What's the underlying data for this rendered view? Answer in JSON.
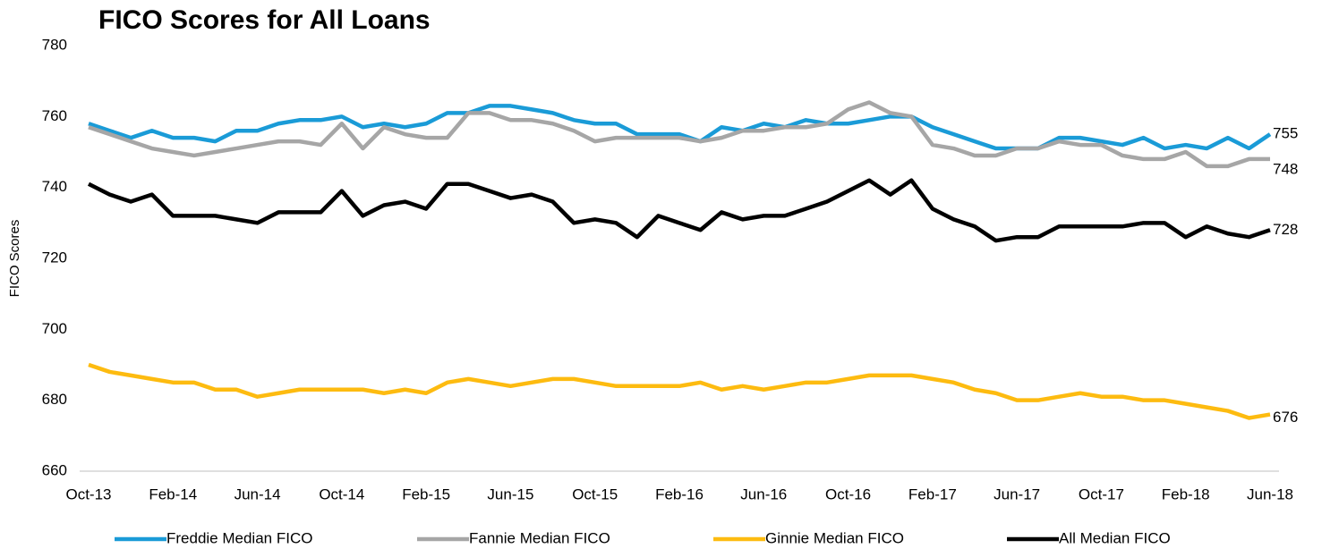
{
  "chart_data": {
    "type": "line",
    "title": "FICO Scores  for All Loans",
    "y_label": "FICO Scores",
    "categories": [
      "Oct-13",
      null,
      null,
      null,
      "Feb-14",
      null,
      null,
      null,
      "Jun-14",
      null,
      null,
      null,
      "Oct-14",
      null,
      null,
      null,
      "Feb-15",
      null,
      null,
      null,
      "Jun-15",
      null,
      null,
      null,
      "Oct-15",
      null,
      null,
      null,
      "Feb-16",
      null,
      null,
      null,
      "Jun-16",
      null,
      null,
      null,
      "Oct-16",
      null,
      null,
      null,
      "Feb-17",
      null,
      null,
      null,
      "Jun-17",
      null,
      null,
      null,
      "Oct-17",
      null,
      null,
      null,
      "Feb-18",
      null,
      null,
      null,
      "Jun-18"
    ],
    "series": [
      {
        "name": "Freddie Median FICO",
        "color": "#1a9bd7",
        "values": [
          758,
          756,
          754,
          756,
          754,
          754,
          753,
          756,
          756,
          758,
          759,
          759,
          760,
          757,
          758,
          757,
          758,
          761,
          761,
          763,
          763,
          762,
          761,
          759,
          758,
          758,
          755,
          755,
          755,
          753,
          757,
          756,
          758,
          757,
          759,
          758,
          758,
          759,
          760,
          760,
          757,
          755,
          753,
          751,
          751,
          751,
          754,
          754,
          753,
          752,
          754,
          751,
          752,
          751,
          754,
          751,
          755
        ]
      },
      {
        "name": "Fannie Median FICO",
        "color": "#a6a6a6",
        "values": [
          757,
          755,
          753,
          751,
          750,
          749,
          750,
          751,
          752,
          753,
          753,
          752,
          758,
          751,
          757,
          755,
          754,
          754,
          761,
          761,
          759,
          759,
          758,
          756,
          753,
          754,
          754,
          754,
          754,
          753,
          754,
          756,
          756,
          757,
          757,
          758,
          762,
          764,
          761,
          760,
          752,
          751,
          749,
          749,
          751,
          751,
          753,
          752,
          752,
          749,
          748,
          748,
          750,
          746,
          746,
          748,
          748
        ]
      },
      {
        "name": "Ginnie Median FICO",
        "color": "#fdbb10",
        "values": [
          690,
          688,
          687,
          686,
          685,
          685,
          683,
          683,
          681,
          682,
          683,
          683,
          683,
          683,
          682,
          683,
          682,
          685,
          686,
          685,
          684,
          685,
          686,
          686,
          685,
          684,
          684,
          684,
          684,
          685,
          683,
          684,
          683,
          684,
          685,
          685,
          686,
          687,
          687,
          687,
          686,
          685,
          683,
          682,
          680,
          680,
          681,
          682,
          681,
          681,
          680,
          680,
          679,
          678,
          677,
          675,
          676
        ]
      },
      {
        "name": "All Median FICO",
        "color": "#000000",
        "values": [
          741,
          738,
          736,
          738,
          732,
          732,
          732,
          731,
          730,
          733,
          733,
          733,
          739,
          732,
          735,
          736,
          734,
          741,
          741,
          739,
          737,
          738,
          736,
          730,
          731,
          730,
          726,
          732,
          730,
          728,
          733,
          731,
          732,
          732,
          734,
          736,
          739,
          742,
          738,
          742,
          734,
          731,
          729,
          725,
          726,
          726,
          729,
          729,
          729,
          729,
          730,
          730,
          726,
          729,
          727,
          726,
          728
        ]
      }
    ],
    "ylim": [
      660,
      780
    ],
    "yticks": [
      660,
      680,
      700,
      720,
      740,
      760,
      780
    ],
    "grid": false,
    "legend": "bottom"
  }
}
